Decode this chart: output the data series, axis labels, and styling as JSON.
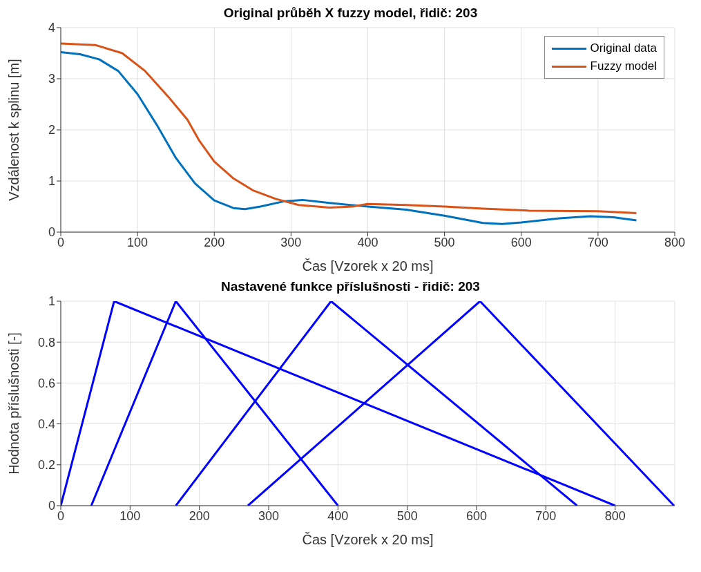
{
  "chart_data": [
    {
      "type": "line",
      "title": "Original průběh X fuzzy model, řidič: 203",
      "xlabel": "Čas [Vzorek x 20 ms]",
      "ylabel": "Vzdálenost k splinu [m]",
      "xlim": [
        0,
        800
      ],
      "xticks": [
        0,
        100,
        200,
        300,
        400,
        500,
        600,
        700,
        800
      ],
      "ylim": [
        0,
        4
      ],
      "yticks": [
        0,
        1,
        2,
        3,
        4
      ],
      "grid": true,
      "legend": "top right",
      "series": [
        {
          "name": "Original data",
          "color": "#0072bd",
          "x": [
            0,
            25,
            50,
            75,
            100,
            125,
            150,
            175,
            200,
            225,
            240,
            260,
            290,
            315,
            350,
            400,
            450,
            500,
            550,
            575,
            600,
            650,
            690,
            720,
            750
          ],
          "values": [
            3.52,
            3.48,
            3.38,
            3.15,
            2.7,
            2.1,
            1.45,
            0.95,
            0.62,
            0.47,
            0.45,
            0.5,
            0.6,
            0.63,
            0.57,
            0.5,
            0.44,
            0.32,
            0.18,
            0.16,
            0.19,
            0.27,
            0.31,
            0.29,
            0.23
          ]
        },
        {
          "name": "Fuzzy model",
          "color": "#d95319",
          "x": [
            0,
            45,
            80,
            110,
            140,
            165,
            180,
            200,
            225,
            250,
            280,
            310,
            350,
            380,
            400,
            450,
            500,
            550,
            610,
            700,
            750
          ],
          "values": [
            3.69,
            3.66,
            3.5,
            3.15,
            2.65,
            2.2,
            1.8,
            1.38,
            1.05,
            0.82,
            0.65,
            0.53,
            0.48,
            0.5,
            0.55,
            0.53,
            0.5,
            0.46,
            0.42,
            0.41,
            0.37
          ]
        }
      ]
    },
    {
      "type": "line",
      "title": "Nastavené funkce příslušnosti - řidič: 203",
      "xlabel": "Čas [Vzorek x 20 ms]",
      "ylabel": "Hodnota příslušnosti [-]",
      "xlim": [
        0,
        886
      ],
      "xticks": [
        0,
        100,
        200,
        300,
        400,
        500,
        600,
        700,
        800
      ],
      "ylim": [
        0,
        1
      ],
      "yticks": [
        0,
        0.2,
        0.4,
        0.6,
        0.8,
        1
      ],
      "grid": true,
      "series": [
        {
          "color": "#0000ff",
          "x": [
            0,
            77,
            800
          ],
          "values": [
            0,
            1,
            0
          ]
        },
        {
          "color": "#0000ff",
          "x": [
            44,
            166,
            400
          ],
          "values": [
            0,
            1,
            0
          ]
        },
        {
          "color": "#0000ff",
          "x": [
            166,
            390,
            745
          ],
          "values": [
            0,
            1,
            0
          ]
        },
        {
          "color": "#0000ff",
          "x": [
            270,
            605,
            885
          ],
          "values": [
            0,
            1,
            0
          ]
        }
      ]
    }
  ]
}
